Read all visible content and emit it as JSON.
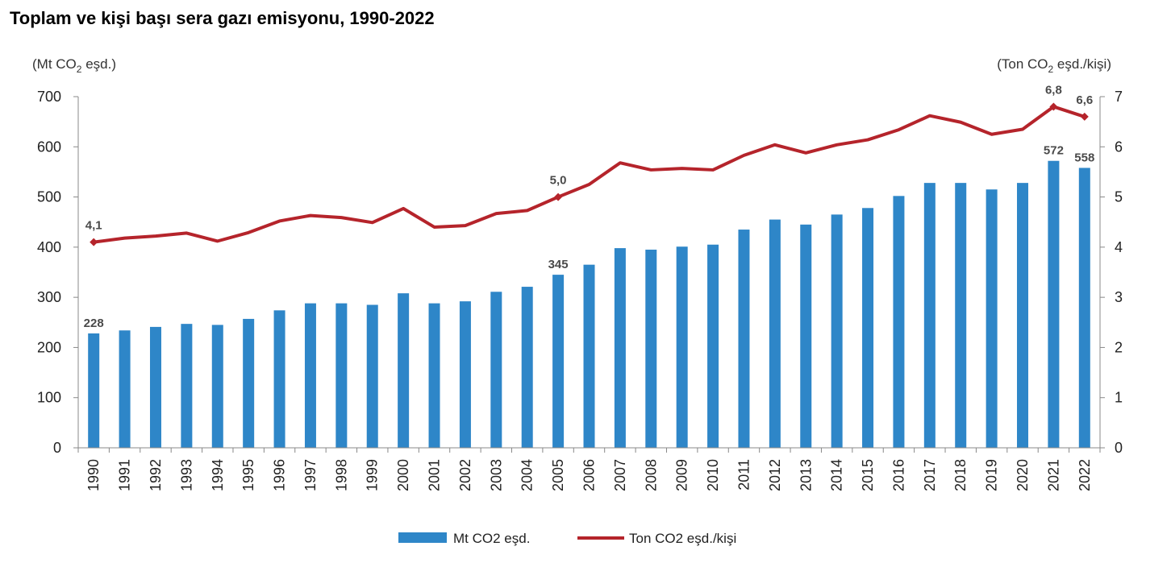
{
  "chart_data": {
    "type": "bar+line",
    "title": "Toplam ve kişi başı sera gazı emisyonu, 1990-2022",
    "left_axis_label": {
      "prefix": "(Mt CO",
      "sub": "2",
      "suffix": " eşd.)"
    },
    "right_axis_label": {
      "prefix": "(Ton CO",
      "sub": "2",
      "suffix": " eşd./kişi)"
    },
    "left_ylim": [
      0,
      700
    ],
    "left_ticks": [
      "0",
      "100",
      "200",
      "300",
      "400",
      "500",
      "600",
      "700"
    ],
    "right_ylim": [
      0,
      7
    ],
    "right_ticks": [
      "0",
      "1",
      "2",
      "3",
      "4",
      "5",
      "6",
      "7"
    ],
    "categories": [
      "1990",
      "1991",
      "1992",
      "1993",
      "1994",
      "1995",
      "1996",
      "1997",
      "1998",
      "1999",
      "2000",
      "2001",
      "2002",
      "2003",
      "2004",
      "2005",
      "2006",
      "2007",
      "2008",
      "2009",
      "2010",
      "2011",
      "2012",
      "2013",
      "2014",
      "2015",
      "2016",
      "2017",
      "2018",
      "2019",
      "2020",
      "2021",
      "2022"
    ],
    "series": [
      {
        "name": "Mt CO2 eşd.",
        "kind": "bar",
        "axis": "left",
        "color": "#2e86c8",
        "values": [
          228,
          234,
          241,
          247,
          245,
          257,
          274,
          288,
          288,
          285,
          308,
          288,
          292,
          311,
          321,
          345,
          365,
          398,
          395,
          401,
          405,
          435,
          455,
          445,
          465,
          478,
          502,
          528,
          528,
          515,
          528,
          572,
          558
        ],
        "labels": [
          {
            "index": 0,
            "text": "228"
          },
          {
            "index": 15,
            "text": "345"
          },
          {
            "index": 31,
            "text": "572"
          },
          {
            "index": 32,
            "text": "558"
          }
        ]
      },
      {
        "name": "Ton CO2 eşd./kişi",
        "kind": "line",
        "axis": "right",
        "color": "#b5242b",
        "values": [
          4.1,
          4.18,
          4.22,
          4.28,
          4.12,
          4.29,
          4.52,
          4.63,
          4.59,
          4.49,
          4.77,
          4.4,
          4.43,
          4.67,
          4.73,
          5.0,
          5.25,
          5.68,
          5.54,
          5.57,
          5.54,
          5.83,
          6.04,
          5.88,
          6.04,
          6.14,
          6.34,
          6.62,
          6.49,
          6.25,
          6.35,
          6.8,
          6.6
        ],
        "labels": [
          {
            "index": 0,
            "text": "4,1"
          },
          {
            "index": 15,
            "text": "5,0"
          },
          {
            "index": 31,
            "text": "6,8"
          },
          {
            "index": 32,
            "text": "6,6"
          }
        ]
      }
    ],
    "legend_position": "bottom-center"
  }
}
